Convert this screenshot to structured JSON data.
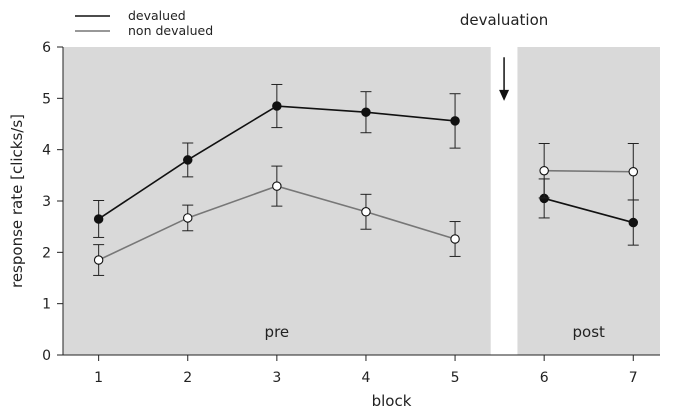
{
  "chart_data": {
    "type": "line",
    "xlabel": "block",
    "ylabel": "response rate [clicks/s]",
    "ylim": [
      0,
      6
    ],
    "yticks": [
      0,
      1,
      2,
      3,
      4,
      5,
      6
    ],
    "xlim": [
      0.6,
      7.3
    ],
    "xticks": [
      1,
      2,
      3,
      4,
      5,
      6,
      7
    ],
    "grid": false,
    "legend_position": "top-left",
    "phases": [
      {
        "label": "pre",
        "x_range": [
          0.6,
          5.4
        ],
        "color": "#d9d9d9"
      },
      {
        "label": "post",
        "x_range": [
          5.7,
          7.3
        ],
        "color": "#d9d9d9"
      }
    ],
    "annotation": {
      "label": "devaluation",
      "x": 5.55,
      "y_from": 5.8,
      "y_to": 4.95
    },
    "series": [
      {
        "name": "devalued",
        "color": "#111111",
        "marker_fill": "#111111",
        "segments": [
          {
            "x": [
              1,
              2,
              3,
              4,
              5
            ],
            "y": [
              2.65,
              3.8,
              4.85,
              4.73,
              4.56
            ],
            "err": [
              0.36,
              0.33,
              0.42,
              0.4,
              0.53
            ]
          },
          {
            "x": [
              6,
              7
            ],
            "y": [
              3.05,
              2.58
            ],
            "err": [
              0.38,
              0.44
            ]
          }
        ]
      },
      {
        "name": "non devalued",
        "color": "#777777",
        "marker_fill": "#ffffff",
        "segments": [
          {
            "x": [
              1,
              2,
              3,
              4,
              5
            ],
            "y": [
              1.85,
              2.67,
              3.29,
              2.79,
              2.26
            ],
            "err": [
              0.3,
              0.25,
              0.39,
              0.34,
              0.34
            ]
          },
          {
            "x": [
              6,
              7
            ],
            "y": [
              3.59,
              3.57
            ],
            "err": [
              0.53,
              0.55
            ]
          }
        ]
      }
    ]
  }
}
